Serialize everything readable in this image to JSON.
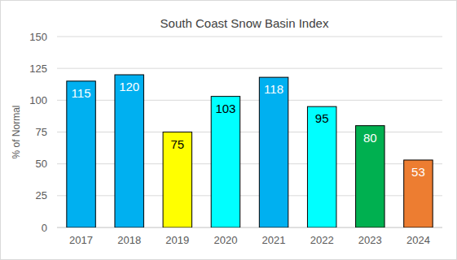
{
  "chart_data": {
    "type": "bar",
    "title": "South Coast Snow Basin Index",
    "y_label": "% of Normal",
    "categories": [
      "2017",
      "2018",
      "2019",
      "2020",
      "2021",
      "2022",
      "2023",
      "2024"
    ],
    "values": [
      115,
      120,
      75,
      103,
      118,
      95,
      80,
      53
    ],
    "colors": [
      "#00b0f0",
      "#00b0f0",
      "#ffff00",
      "#00ffff",
      "#00b0f0",
      "#00ffff",
      "#00b050",
      "#ed7d31"
    ],
    "ylim": [
      0,
      150
    ],
    "yticks": [
      0,
      25,
      50,
      75,
      100,
      125,
      150
    ],
    "grid": true,
    "data_labels": true
  }
}
